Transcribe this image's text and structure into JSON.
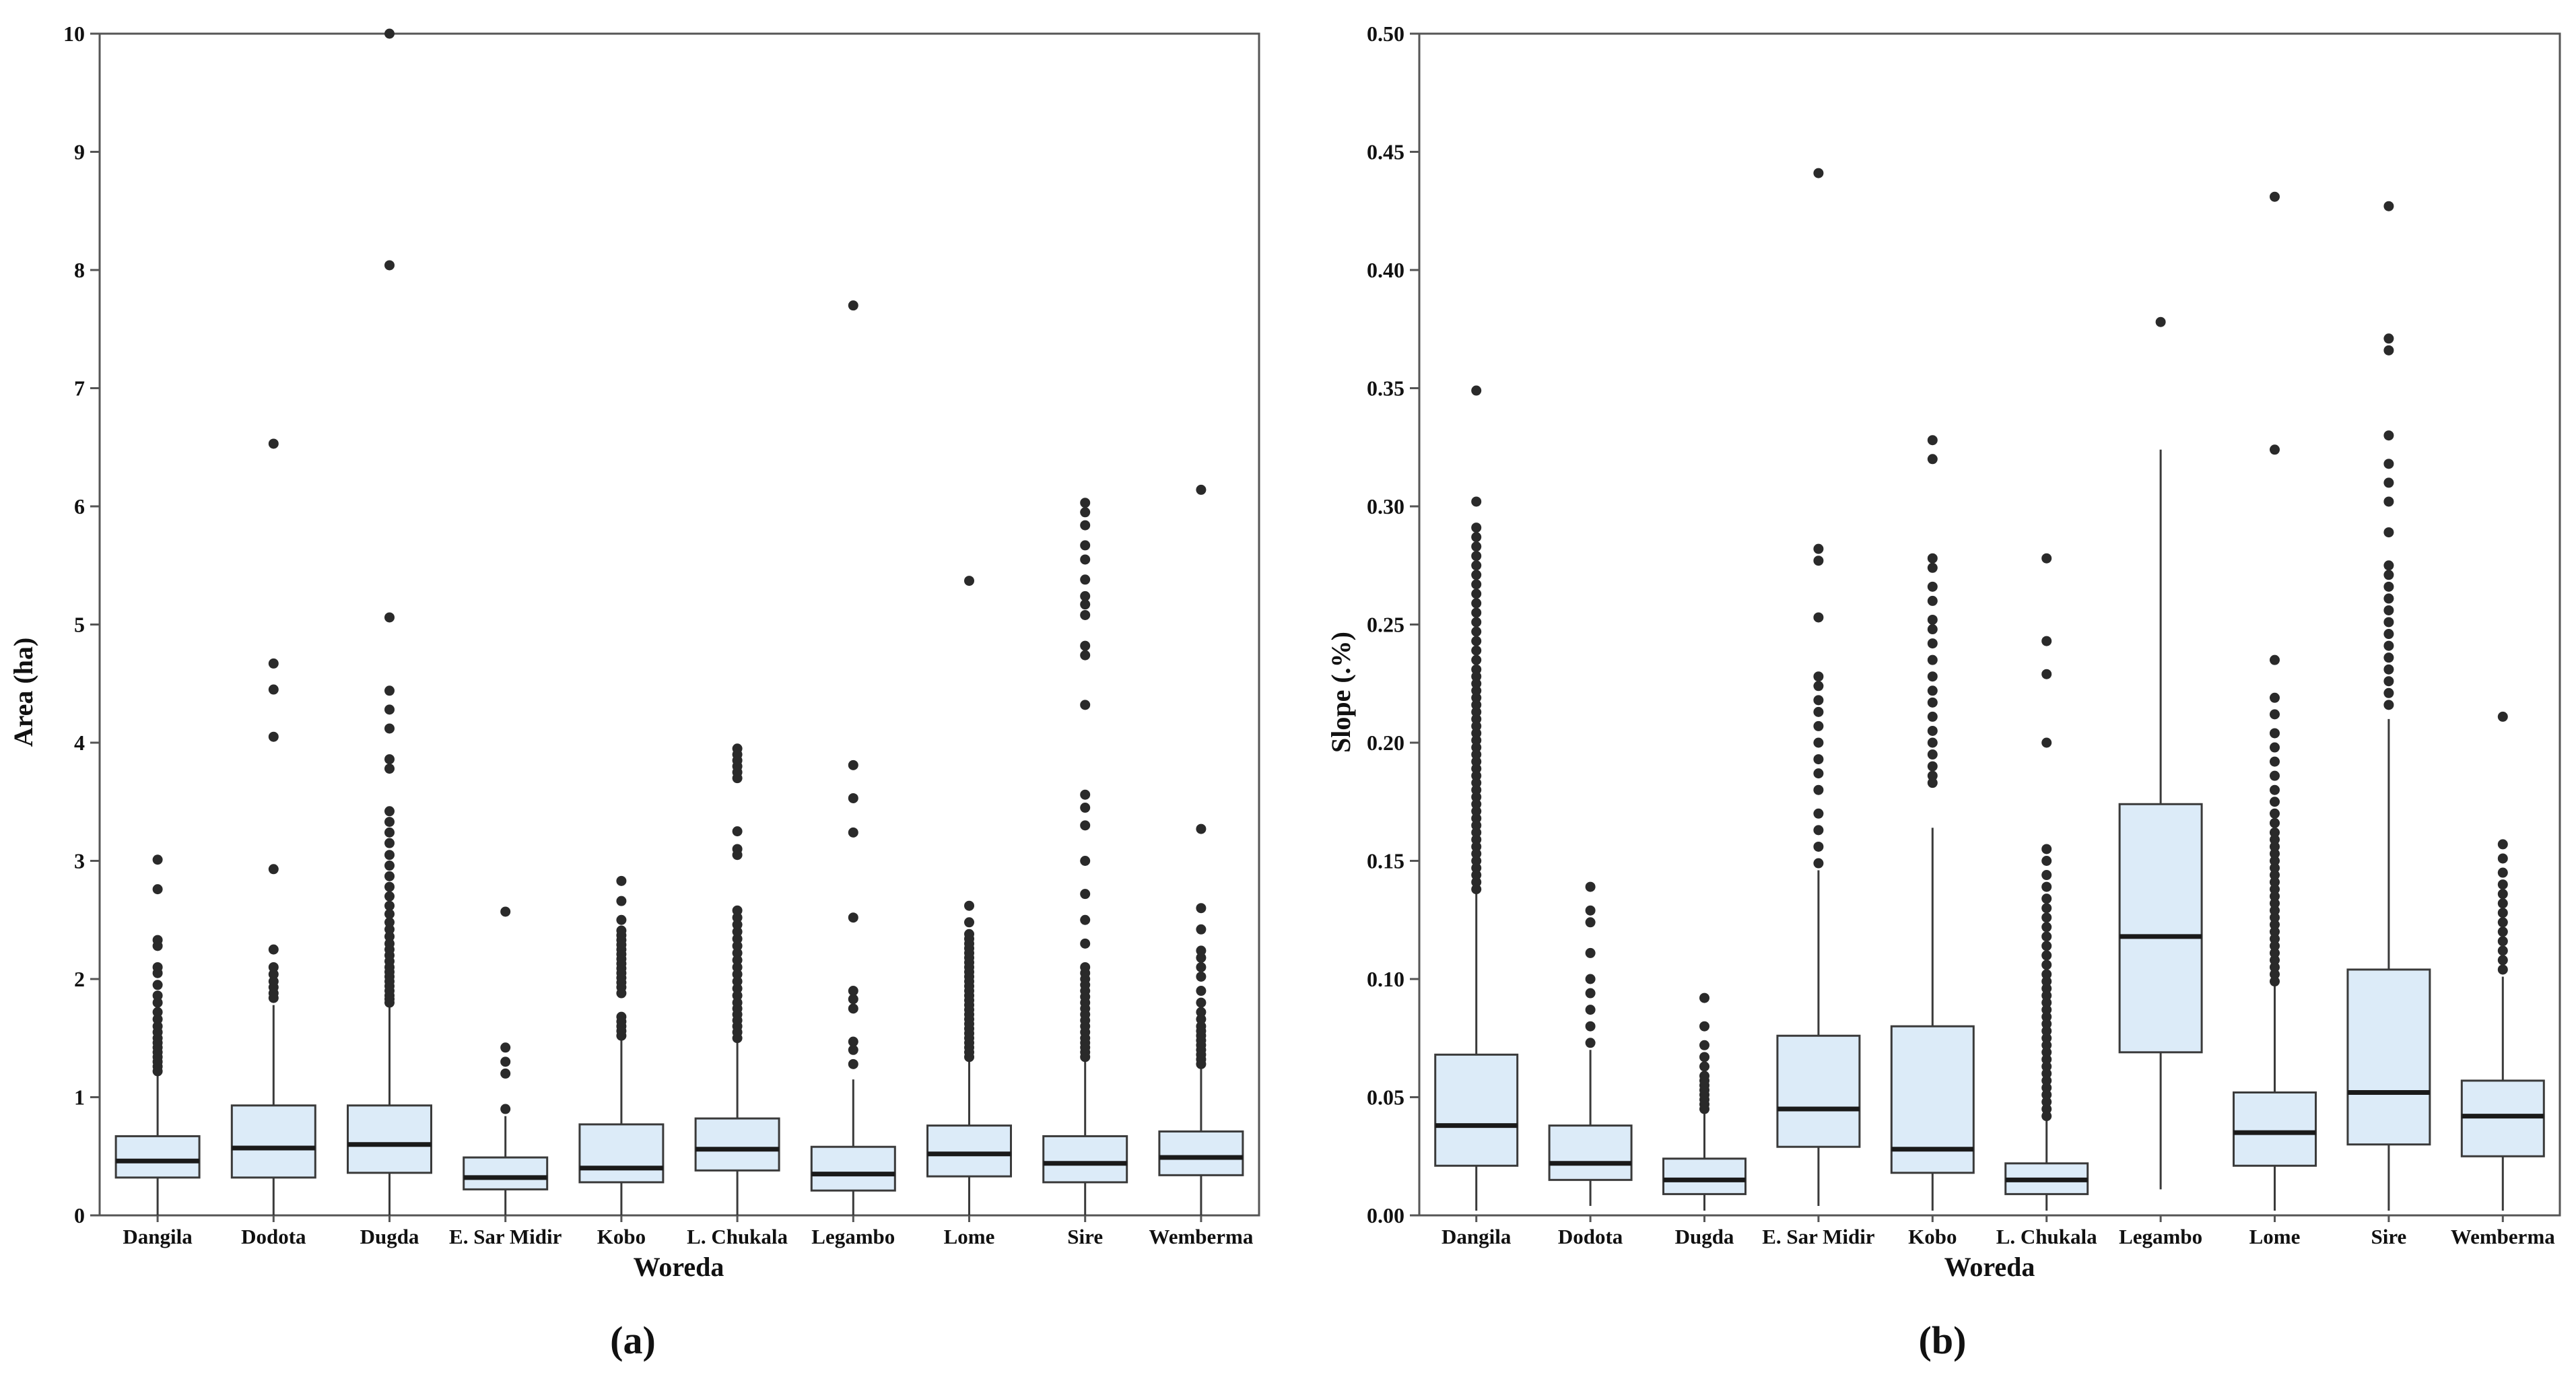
{
  "figure": {
    "panel_labels": [
      "(a)",
      "(b)"
    ]
  },
  "colors": {
    "box_fill": "#dcebf8",
    "box_stroke": "#3a3a3a",
    "median": "#1a1a1a",
    "outlier": "#2a2a2a",
    "frame": "#555555"
  },
  "chart_data": [
    {
      "type": "box",
      "title": "",
      "xlabel": "Woreda",
      "ylabel": "Area (ha)",
      "ylim": [
        0,
        10
      ],
      "yticks": [
        "0",
        "1",
        "2",
        "3",
        "4",
        "5",
        "6",
        "7",
        "8",
        "9",
        "10"
      ],
      "yticks_values": [
        0,
        1,
        2,
        3,
        4,
        5,
        6,
        7,
        8,
        9,
        10
      ],
      "categories": [
        "Dangila",
        "Dodota",
        "Dugda",
        "E. Sar Midir",
        "Kobo",
        "L. Chukala",
        "Legambo",
        "Lome",
        "Sire",
        "Wemberma"
      ],
      "boxes": [
        {
          "whisker_low": 0.0,
          "q1": 0.32,
          "median": 0.46,
          "q3": 0.67,
          "whisker_high": 1.18,
          "outliers": [
            1.22,
            1.26,
            1.3,
            1.34,
            1.38,
            1.42,
            1.46,
            1.5,
            1.55,
            1.6,
            1.66,
            1.72,
            1.8,
            1.86,
            1.95,
            2.05,
            2.1,
            2.28,
            2.33,
            2.76,
            3.01
          ]
        },
        {
          "whisker_low": 0.0,
          "q1": 0.32,
          "median": 0.57,
          "q3": 0.93,
          "whisker_high": 1.78,
          "outliers": [
            1.84,
            1.88,
            1.93,
            1.98,
            2.04,
            2.1,
            2.25,
            2.93,
            4.05,
            4.45,
            4.67,
            6.53
          ]
        },
        {
          "whisker_low": 0.0,
          "q1": 0.36,
          "median": 0.6,
          "q3": 0.93,
          "whisker_high": 1.78,
          "outliers": [
            1.8,
            1.83,
            1.86,
            1.9,
            1.94,
            1.98,
            2.02,
            2.06,
            2.1,
            2.15,
            2.2,
            2.25,
            2.3,
            2.36,
            2.42,
            2.48,
            2.55,
            2.62,
            2.7,
            2.78,
            2.87,
            2.96,
            3.05,
            3.15,
            3.24,
            3.33,
            3.42,
            3.78,
            3.86,
            4.12,
            4.28,
            4.44,
            5.06,
            8.04,
            10.0
          ]
        },
        {
          "whisker_low": 0.0,
          "q1": 0.22,
          "median": 0.32,
          "q3": 0.49,
          "whisker_high": 0.84,
          "outliers": [
            0.9,
            1.2,
            1.3,
            1.42,
            2.57
          ]
        },
        {
          "whisker_low": 0.0,
          "q1": 0.28,
          "median": 0.4,
          "q3": 0.77,
          "whisker_high": 1.5,
          "outliers": [
            1.52,
            1.56,
            1.6,
            1.64,
            1.68,
            1.88,
            1.93,
            1.97,
            2.01,
            2.05,
            2.09,
            2.13,
            2.17,
            2.21,
            2.25,
            2.29,
            2.33,
            2.37,
            2.41,
            2.5,
            2.66,
            2.83
          ]
        },
        {
          "whisker_low": 0.0,
          "q1": 0.38,
          "median": 0.56,
          "q3": 0.82,
          "whisker_high": 1.46,
          "outliers": [
            1.5,
            1.55,
            1.6,
            1.65,
            1.7,
            1.75,
            1.8,
            1.86,
            1.92,
            1.98,
            2.04,
            2.1,
            2.16,
            2.22,
            2.28,
            2.34,
            2.4,
            2.46,
            2.52,
            2.58,
            3.05,
            3.1,
            3.25,
            3.7,
            3.75,
            3.8,
            3.85,
            3.9,
            3.95
          ]
        },
        {
          "whisker_low": 0.0,
          "q1": 0.21,
          "median": 0.35,
          "q3": 0.58,
          "whisker_high": 1.15,
          "outliers": [
            1.28,
            1.4,
            1.47,
            1.75,
            1.83,
            1.9,
            2.52,
            3.24,
            3.53,
            3.81,
            7.7
          ]
        },
        {
          "whisker_low": 0.0,
          "q1": 0.33,
          "median": 0.52,
          "q3": 0.76,
          "whisker_high": 1.3,
          "outliers": [
            1.34,
            1.38,
            1.42,
            1.46,
            1.5,
            1.54,
            1.58,
            1.62,
            1.66,
            1.7,
            1.74,
            1.78,
            1.82,
            1.86,
            1.9,
            1.94,
            1.98,
            2.02,
            2.06,
            2.1,
            2.14,
            2.18,
            2.22,
            2.26,
            2.3,
            2.34,
            2.38,
            2.48,
            2.62,
            5.37
          ]
        },
        {
          "whisker_low": 0.0,
          "q1": 0.28,
          "median": 0.44,
          "q3": 0.67,
          "whisker_high": 1.3,
          "outliers": [
            1.34,
            1.38,
            1.42,
            1.46,
            1.5,
            1.55,
            1.6,
            1.65,
            1.7,
            1.75,
            1.8,
            1.85,
            1.9,
            1.95,
            2.0,
            2.05,
            2.1,
            2.3,
            2.5,
            2.72,
            3.0,
            3.3,
            3.45,
            3.56,
            4.32,
            4.74,
            4.82,
            5.08,
            5.17,
            5.24,
            5.38,
            5.55,
            5.67,
            5.84,
            5.95,
            6.03
          ]
        },
        {
          "whisker_low": 0.0,
          "q1": 0.34,
          "median": 0.49,
          "q3": 0.71,
          "whisker_high": 1.25,
          "outliers": [
            1.28,
            1.32,
            1.36,
            1.4,
            1.44,
            1.48,
            1.52,
            1.56,
            1.6,
            1.66,
            1.72,
            1.8,
            1.9,
            2.02,
            2.1,
            2.18,
            2.24,
            2.42,
            2.6,
            3.27,
            6.14
          ]
        }
      ]
    },
    {
      "type": "box",
      "title": "",
      "xlabel": "Woreda",
      "ylabel": "Slope (.%)",
      "ylim": [
        0,
        0.5
      ],
      "yticks": [
        "0.00",
        "0.05",
        "0.10",
        "0.15",
        "0.20",
        "0.25",
        "0.30",
        "0.35",
        "0.40",
        "0.45",
        "0.50"
      ],
      "yticks_values": [
        0,
        0.05,
        0.1,
        0.15,
        0.2,
        0.25,
        0.3,
        0.35,
        0.4,
        0.45,
        0.5
      ],
      "categories": [
        "Dangila",
        "Dodota",
        "Dugda",
        "E. Sar Midir",
        "Kobo",
        "L. Chukala",
        "Legambo",
        "Lome",
        "Sire",
        "Wemberma"
      ],
      "boxes": [
        {
          "whisker_low": 0.002,
          "q1": 0.021,
          "median": 0.038,
          "q3": 0.068,
          "whisker_high": 0.136,
          "outliers": [
            0.138,
            0.141,
            0.144,
            0.147,
            0.15,
            0.153,
            0.156,
            0.159,
            0.162,
            0.165,
            0.168,
            0.171,
            0.174,
            0.177,
            0.18,
            0.183,
            0.186,
            0.189,
            0.192,
            0.195,
            0.198,
            0.201,
            0.204,
            0.207,
            0.21,
            0.213,
            0.216,
            0.219,
            0.222,
            0.225,
            0.228,
            0.231,
            0.235,
            0.239,
            0.243,
            0.247,
            0.251,
            0.255,
            0.259,
            0.263,
            0.267,
            0.271,
            0.275,
            0.279,
            0.283,
            0.287,
            0.291,
            0.302,
            0.349
          ]
        },
        {
          "whisker_low": 0.004,
          "q1": 0.015,
          "median": 0.022,
          "q3": 0.038,
          "whisker_high": 0.07,
          "outliers": [
            0.073,
            0.08,
            0.087,
            0.094,
            0.1,
            0.111,
            0.124,
            0.129,
            0.139
          ]
        },
        {
          "whisker_low": 0.002,
          "q1": 0.009,
          "median": 0.015,
          "q3": 0.024,
          "whisker_high": 0.043,
          "outliers": [
            0.045,
            0.047,
            0.049,
            0.051,
            0.053,
            0.055,
            0.057,
            0.059,
            0.063,
            0.067,
            0.072,
            0.08,
            0.092
          ]
        },
        {
          "whisker_low": 0.004,
          "q1": 0.029,
          "median": 0.045,
          "q3": 0.076,
          "whisker_high": 0.146,
          "outliers": [
            0.149,
            0.156,
            0.163,
            0.17,
            0.18,
            0.187,
            0.193,
            0.2,
            0.207,
            0.213,
            0.218,
            0.224,
            0.228,
            0.253,
            0.277,
            0.282,
            0.441
          ]
        },
        {
          "whisker_low": 0.002,
          "q1": 0.018,
          "median": 0.028,
          "q3": 0.08,
          "whisker_high": 0.164,
          "outliers": [
            0.183,
            0.186,
            0.19,
            0.195,
            0.2,
            0.205,
            0.211,
            0.217,
            0.222,
            0.228,
            0.235,
            0.242,
            0.248,
            0.252,
            0.26,
            0.266,
            0.274,
            0.278,
            0.32,
            0.328
          ]
        },
        {
          "whisker_low": 0.002,
          "q1": 0.009,
          "median": 0.015,
          "q3": 0.022,
          "whisker_high": 0.04,
          "outliers": [
            0.042,
            0.045,
            0.048,
            0.051,
            0.054,
            0.057,
            0.06,
            0.063,
            0.066,
            0.069,
            0.072,
            0.075,
            0.078,
            0.081,
            0.084,
            0.087,
            0.09,
            0.093,
            0.096,
            0.099,
            0.102,
            0.106,
            0.11,
            0.114,
            0.118,
            0.122,
            0.126,
            0.13,
            0.134,
            0.139,
            0.144,
            0.15,
            0.155,
            0.2,
            0.229,
            0.243,
            0.278
          ]
        },
        {
          "whisker_low": 0.011,
          "q1": 0.069,
          "median": 0.118,
          "q3": 0.174,
          "whisker_high": 0.324,
          "outliers": [
            0.378
          ]
        },
        {
          "whisker_low": 0.002,
          "q1": 0.021,
          "median": 0.035,
          "q3": 0.052,
          "whisker_high": 0.097,
          "outliers": [
            0.099,
            0.102,
            0.105,
            0.108,
            0.111,
            0.114,
            0.117,
            0.12,
            0.123,
            0.126,
            0.129,
            0.132,
            0.135,
            0.138,
            0.141,
            0.144,
            0.147,
            0.15,
            0.153,
            0.156,
            0.159,
            0.162,
            0.166,
            0.17,
            0.175,
            0.18,
            0.186,
            0.192,
            0.198,
            0.204,
            0.212,
            0.219,
            0.235,
            0.324,
            0.431
          ]
        },
        {
          "whisker_low": 0.002,
          "q1": 0.03,
          "median": 0.052,
          "q3": 0.104,
          "whisker_high": 0.21,
          "outliers": [
            0.216,
            0.221,
            0.226,
            0.231,
            0.236,
            0.241,
            0.246,
            0.251,
            0.256,
            0.261,
            0.266,
            0.271,
            0.275,
            0.289,
            0.302,
            0.31,
            0.318,
            0.33,
            0.366,
            0.371,
            0.427
          ]
        },
        {
          "whisker_low": 0.002,
          "q1": 0.025,
          "median": 0.042,
          "q3": 0.057,
          "whisker_high": 0.101,
          "outliers": [
            0.104,
            0.108,
            0.112,
            0.116,
            0.12,
            0.124,
            0.128,
            0.132,
            0.136,
            0.14,
            0.145,
            0.151,
            0.157,
            0.211
          ]
        }
      ]
    }
  ]
}
